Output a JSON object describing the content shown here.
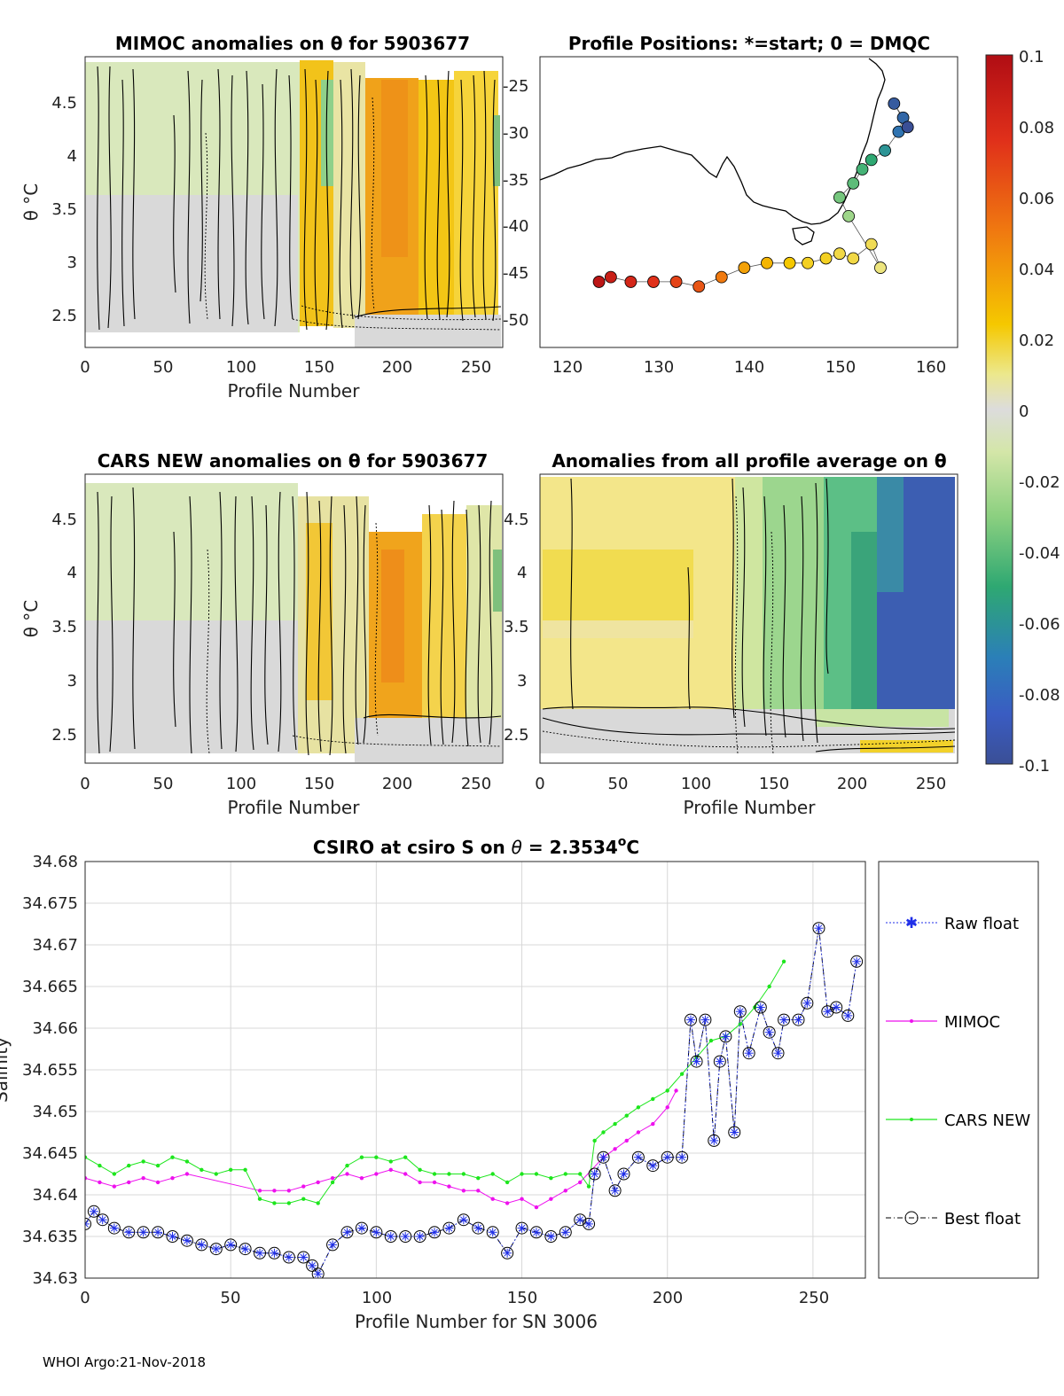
{
  "footer": "WHOI Argo:21-Nov-2018",
  "colors": {
    "raw_float": "#1f2ee8",
    "mimoc": "#ee11ee",
    "cars_new": "#1de61d",
    "best_float": "#000000",
    "grid": "#d8d8d8"
  },
  "chart_data": [
    {
      "id": "mimoc",
      "type": "heatmap",
      "title": "MIMOC anomalies on θ  for 5903677",
      "xlabel": "Profile Number",
      "ylabel": "θ °C",
      "xlim": [
        0,
        267
      ],
      "ylim": [
        2.2,
        4.9
      ],
      "xticks": [
        "0",
        "50",
        "100",
        "150",
        "200",
        "250"
      ],
      "yticks": [
        "2.5",
        "3",
        "3.5",
        "4",
        "4.5"
      ]
    },
    {
      "id": "positions",
      "type": "scatter",
      "title": "Profile Positions: *=start; 0 = DMQC",
      "xlim": [
        117,
        163
      ],
      "ylim": [
        -53,
        -22
      ],
      "xticks": [
        "120",
        "130",
        "140",
        "150",
        "160"
      ],
      "yticks": [
        "-25",
        "-30",
        "-35",
        "-40",
        "-45",
        "-50"
      ],
      "x": [
        123.5,
        124.8,
        127.0,
        129.5,
        132.0,
        134.5,
        137.0,
        139.5,
        142.0,
        144.5,
        146.5,
        148.5,
        150.0,
        151.5,
        153.5,
        154.5,
        151.0,
        150.0,
        151.5,
        152.5,
        153.5,
        155.0,
        156.5,
        157.0,
        156.0,
        157.5
      ],
      "y": [
        -46.0,
        -45.5,
        -46.0,
        -46.0,
        -46.0,
        -46.5,
        -45.5,
        -44.5,
        -44.0,
        -44.0,
        -44.0,
        -43.5,
        -43.0,
        -43.5,
        -42.0,
        -44.5,
        -39.0,
        -37.0,
        -35.5,
        -34.0,
        -33.0,
        -32.0,
        -30.0,
        -28.5,
        -27.0,
        -29.5
      ],
      "color_values": [
        0.095,
        0.09,
        0.085,
        0.08,
        0.075,
        0.07,
        0.06,
        0.05,
        0.045,
        0.04,
        0.035,
        0.035,
        0.03,
        0.03,
        0.028,
        0.022,
        -0.035,
        -0.045,
        -0.05,
        -0.055,
        -0.06,
        -0.07,
        -0.085,
        -0.09,
        -0.095,
        -0.1
      ]
    },
    {
      "id": "cars",
      "type": "heatmap",
      "title": "CARS NEW anomalies on θ for 5903677",
      "xlabel": "Profile Number",
      "ylabel": "θ °C",
      "xlim": [
        0,
        267
      ],
      "ylim": [
        2.2,
        4.9
      ],
      "xticks": [
        "0",
        "50",
        "100",
        "150",
        "200",
        "250"
      ],
      "yticks": [
        "2.5",
        "3",
        "3.5",
        "4",
        "4.5"
      ]
    },
    {
      "id": "average",
      "type": "heatmap",
      "title": "Anomalies from all profile average on θ",
      "xlabel": "Profile Number",
      "xlim": [
        0,
        267
      ],
      "ylim": [
        2.2,
        4.9
      ],
      "xticks": [
        "0",
        "50",
        "100",
        "150",
        "200",
        "250"
      ],
      "yticks": [
        "2.5",
        "3",
        "3.5",
        "4",
        "4.5"
      ]
    },
    {
      "id": "colorbar",
      "type": "heatmap",
      "range": [
        -0.1,
        0.1
      ],
      "ticks": [
        "0.1",
        "0.08",
        "0.06",
        "0.04",
        "0.02",
        "0",
        "-0.02",
        "-0.04",
        "-0.06",
        "-0.08",
        "-0.1"
      ]
    },
    {
      "id": "salinity",
      "type": "line",
      "title": "CSIRO at csiro S on θ = 2.3534°C",
      "title_parts": [
        "CSIRO at csiro S on ",
        "θ",
        " = 2.3534",
        "o",
        "C"
      ],
      "xlabel": "Profile Number for SN 3006",
      "ylabel": "Salinity",
      "xlim": [
        0,
        268
      ],
      "ylim": [
        34.63,
        34.68
      ],
      "xticks": [
        "0",
        "50",
        "100",
        "150",
        "200",
        "250"
      ],
      "yticks": [
        "34.63",
        "34.635",
        "34.64",
        "34.645",
        "34.65",
        "34.655",
        "34.66",
        "34.665",
        "34.67",
        "34.675",
        "34.68"
      ],
      "legend": [
        "Raw float",
        "MIMOC",
        "CARS NEW",
        "Best float"
      ],
      "series": [
        {
          "name": "Raw float",
          "x": [
            0,
            3,
            6,
            10,
            15,
            20,
            25,
            30,
            35,
            40,
            45,
            50,
            55,
            60,
            65,
            70,
            75,
            78,
            80,
            85,
            90,
            95,
            100,
            105,
            110,
            115,
            120,
            125,
            130,
            135,
            140,
            145,
            150,
            155,
            160,
            165,
            170,
            173,
            175,
            178,
            182,
            185,
            190,
            195,
            200,
            205,
            208,
            210,
            213,
            216,
            218,
            220,
            223,
            225,
            228,
            232,
            235,
            238,
            240,
            245,
            248,
            252,
            255,
            258,
            262,
            265
          ],
          "y": [
            34.6365,
            34.638,
            34.637,
            34.636,
            34.6355,
            34.6355,
            34.6355,
            34.635,
            34.6345,
            34.634,
            34.6335,
            34.634,
            34.6335,
            34.633,
            34.633,
            34.6325,
            34.6325,
            34.6315,
            34.6305,
            34.634,
            34.6355,
            34.636,
            34.6355,
            34.635,
            34.635,
            34.635,
            34.6355,
            34.636,
            34.637,
            34.636,
            34.6355,
            34.633,
            34.636,
            34.6355,
            34.635,
            34.6355,
            34.637,
            34.6365,
            34.6425,
            34.6445,
            34.6405,
            34.6425,
            34.6445,
            34.6435,
            34.6445,
            34.6445,
            34.661,
            34.656,
            34.661,
            34.6465,
            34.656,
            34.659,
            34.6475,
            34.662,
            34.657,
            34.6625,
            34.6595,
            34.657,
            34.661,
            34.661,
            34.663,
            34.672,
            34.662,
            34.6625,
            34.6615,
            34.668
          ]
        },
        {
          "name": "MIMOC",
          "x": [
            0,
            5,
            10,
            15,
            20,
            25,
            30,
            35,
            60,
            65,
            70,
            75,
            80,
            85,
            90,
            95,
            100,
            105,
            110,
            115,
            120,
            125,
            130,
            135,
            140,
            145,
            150,
            155,
            160,
            165,
            170,
            178,
            182,
            186,
            190,
            195,
            200,
            203
          ],
          "y": [
            34.642,
            34.6415,
            34.641,
            34.6415,
            34.642,
            34.6415,
            34.642,
            34.6425,
            34.6405,
            34.6405,
            34.6405,
            34.641,
            34.6415,
            34.642,
            34.6425,
            34.642,
            34.6425,
            34.643,
            34.6425,
            34.6415,
            34.6415,
            34.641,
            34.6405,
            34.6405,
            34.6395,
            34.639,
            34.6395,
            34.6385,
            34.6395,
            34.6405,
            34.6415,
            34.6445,
            34.6455,
            34.6465,
            34.6475,
            34.6485,
            34.6505,
            34.6525
          ]
        },
        {
          "name": "CARS NEW",
          "x": [
            0,
            5,
            10,
            15,
            20,
            25,
            30,
            35,
            40,
            45,
            50,
            55,
            60,
            65,
            70,
            75,
            80,
            85,
            90,
            95,
            100,
            105,
            110,
            115,
            120,
            125,
            130,
            135,
            140,
            145,
            150,
            155,
            160,
            165,
            170,
            173,
            175,
            178,
            182,
            186,
            190,
            195,
            200,
            205,
            210,
            215,
            220,
            225,
            230,
            235,
            240
          ],
          "y": [
            34.6445,
            34.6435,
            34.6425,
            34.6435,
            34.644,
            34.6435,
            34.6445,
            34.644,
            34.643,
            34.6425,
            34.643,
            34.643,
            34.6395,
            34.639,
            34.639,
            34.6395,
            34.639,
            34.6415,
            34.6435,
            34.6445,
            34.6445,
            34.644,
            34.6445,
            34.643,
            34.6425,
            34.6425,
            34.6425,
            34.642,
            34.6425,
            34.6415,
            34.6425,
            34.6425,
            34.642,
            34.6425,
            34.6425,
            34.641,
            34.6465,
            34.6475,
            34.6485,
            34.6495,
            34.6505,
            34.6515,
            34.6525,
            34.6545,
            34.6565,
            34.6585,
            34.659,
            34.6605,
            34.6625,
            34.665,
            34.668
          ]
        },
        {
          "name": "Best float",
          "x": [
            0,
            3,
            6,
            10,
            15,
            20,
            25,
            30,
            35,
            40,
            45,
            50,
            55,
            60,
            65,
            70,
            75,
            78,
            80,
            85,
            90,
            95,
            100,
            105,
            110,
            115,
            120,
            125,
            130,
            135,
            140,
            145,
            150,
            155,
            160,
            165,
            170,
            173,
            175,
            178,
            182,
            185,
            190,
            195,
            200,
            205,
            208,
            210,
            213,
            216,
            218,
            220,
            223,
            225,
            228,
            232,
            235,
            238,
            240,
            245,
            248,
            252,
            255,
            258,
            262,
            265
          ],
          "y": [
            34.6365,
            34.638,
            34.637,
            34.636,
            34.6355,
            34.6355,
            34.6355,
            34.635,
            34.6345,
            34.634,
            34.6335,
            34.634,
            34.6335,
            34.633,
            34.633,
            34.6325,
            34.6325,
            34.6315,
            34.6305,
            34.634,
            34.6355,
            34.636,
            34.6355,
            34.635,
            34.635,
            34.635,
            34.6355,
            34.636,
            34.637,
            34.636,
            34.6355,
            34.633,
            34.636,
            34.6355,
            34.635,
            34.6355,
            34.637,
            34.6365,
            34.6425,
            34.6445,
            34.6405,
            34.6425,
            34.6445,
            34.6435,
            34.6445,
            34.6445,
            34.661,
            34.656,
            34.661,
            34.6465,
            34.656,
            34.659,
            34.6475,
            34.662,
            34.657,
            34.6625,
            34.6595,
            34.657,
            34.661,
            34.661,
            34.663,
            34.672,
            34.662,
            34.6625,
            34.6615,
            34.668
          ]
        }
      ]
    }
  ]
}
